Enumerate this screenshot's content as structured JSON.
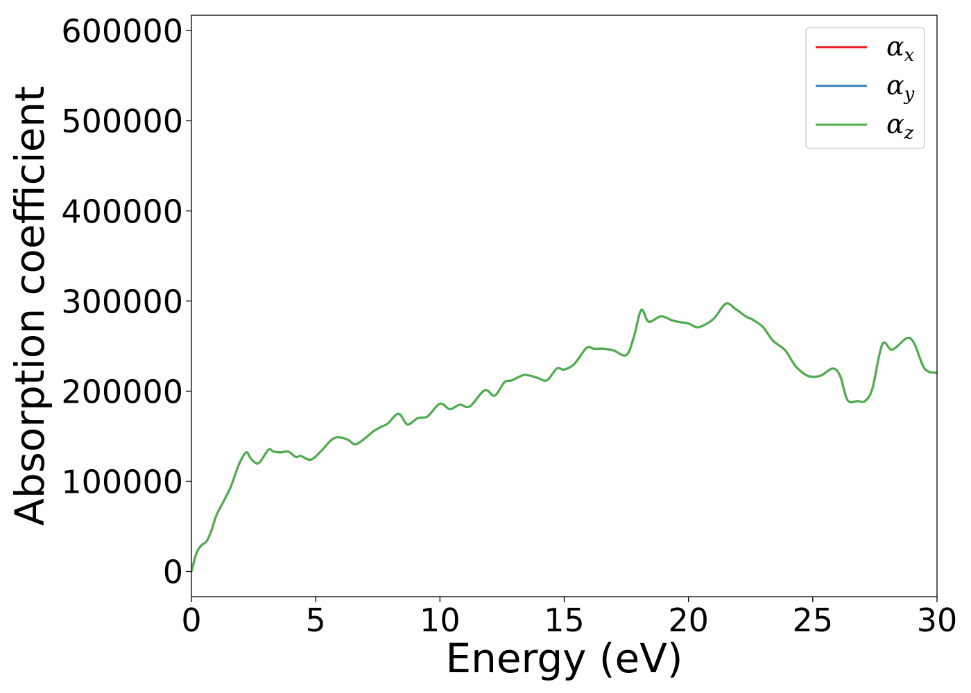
{
  "chart_data": {
    "type": "line",
    "title": "",
    "xlabel": "Energy (eV)",
    "ylabel": "Absorption coefficient",
    "xlim": [
      0,
      30
    ],
    "ylim": [
      -28000,
      617000
    ],
    "x_ticks": [
      0,
      5,
      10,
      15,
      20,
      25,
      30
    ],
    "y_ticks": [
      0,
      100000,
      200000,
      300000,
      400000,
      500000,
      600000
    ],
    "x_tick_labels": [
      "0",
      "5",
      "10",
      "15",
      "20",
      "25",
      "30"
    ],
    "y_tick_labels": [
      "0",
      "100000",
      "200000",
      "300000",
      "400000",
      "500000",
      "600000"
    ],
    "grid": false,
    "legend_position": "top-right",
    "x": [
      0,
      0.2,
      0.4,
      0.6,
      0.8,
      1.0,
      1.3,
      1.6,
      1.9,
      2.2,
      2.4,
      2.7,
      3.1,
      3.3,
      3.6,
      3.9,
      4.2,
      4.4,
      4.8,
      5.2,
      5.6,
      5.9,
      6.3,
      6.6,
      7.0,
      7.3,
      7.6,
      7.9,
      8.2,
      8.4,
      8.7,
      9.1,
      9.5,
      10.0,
      10.4,
      10.8,
      11.2,
      11.8,
      12.2,
      12.6,
      12.9,
      13.4,
      13.9,
      14.3,
      14.7,
      15.0,
      15.4,
      15.9,
      16.2,
      16.6,
      17.0,
      17.5,
      17.8,
      18.1,
      18.4,
      18.9,
      19.4,
      20.0,
      20.4,
      21.0,
      21.5,
      21.9,
      22.3,
      22.6,
      23.0,
      23.4,
      23.9,
      24.3,
      24.8,
      25.3,
      25.8,
      26.1,
      26.4,
      26.8,
      27.1,
      27.4,
      27.8,
      28.2,
      28.8,
      29.1,
      29.5,
      30.0
    ],
    "series": [
      {
        "name": "αx",
        "color": "#e41a1c",
        "y": [
          0,
          20000,
          29000,
          33000,
          45000,
          62000,
          78000,
          95000,
          118000,
          132000,
          125000,
          120000,
          135000,
          133000,
          132000,
          133000,
          127000,
          128000,
          124000,
          133000,
          145000,
          149000,
          146000,
          141000,
          148000,
          155000,
          160000,
          164000,
          173000,
          174000,
          163000,
          170000,
          172000,
          186000,
          180000,
          185000,
          183000,
          201000,
          195000,
          210000,
          212000,
          218000,
          215000,
          212000,
          225000,
          224000,
          230000,
          248000,
          247000,
          247000,
          245000,
          240000,
          260000,
          290000,
          277000,
          283000,
          278000,
          275000,
          271000,
          280000,
          297000,
          291000,
          283000,
          279000,
          271000,
          256000,
          245000,
          228000,
          217000,
          217000,
          225000,
          217000,
          190000,
          189000,
          189000,
          203000,
          252000,
          246000,
          259000,
          252000,
          225000,
          220000
        ]
      },
      {
        "name": "αy",
        "color": "#377eb8",
        "y": [
          0,
          20000,
          29000,
          33000,
          45000,
          62000,
          78000,
          95000,
          118000,
          132000,
          125000,
          120000,
          135000,
          133000,
          132000,
          133000,
          127000,
          128000,
          124000,
          133000,
          145000,
          149000,
          146000,
          141000,
          148000,
          155000,
          160000,
          164000,
          173000,
          174000,
          163000,
          170000,
          172000,
          186000,
          180000,
          185000,
          183000,
          201000,
          195000,
          210000,
          212000,
          218000,
          215000,
          212000,
          225000,
          224000,
          230000,
          248000,
          247000,
          247000,
          245000,
          240000,
          260000,
          290000,
          277000,
          283000,
          278000,
          275000,
          271000,
          280000,
          297000,
          291000,
          283000,
          279000,
          271000,
          256000,
          245000,
          228000,
          217000,
          217000,
          225000,
          217000,
          190000,
          189000,
          189000,
          203000,
          252000,
          246000,
          259000,
          252000,
          225000,
          220000
        ]
      },
      {
        "name": "αz",
        "color": "#4daf4a",
        "y": [
          0,
          20000,
          29000,
          33000,
          45000,
          62000,
          78000,
          95000,
          118000,
          132000,
          125000,
          120000,
          135000,
          133000,
          132000,
          133000,
          127000,
          128000,
          124000,
          133000,
          145000,
          149000,
          146000,
          141000,
          148000,
          155000,
          160000,
          164000,
          173000,
          174000,
          163000,
          170000,
          172000,
          186000,
          180000,
          185000,
          183000,
          201000,
          195000,
          210000,
          212000,
          218000,
          215000,
          212000,
          225000,
          224000,
          230000,
          248000,
          247000,
          247000,
          245000,
          240000,
          260000,
          290000,
          277000,
          283000,
          278000,
          275000,
          271000,
          280000,
          297000,
          291000,
          283000,
          279000,
          271000,
          256000,
          245000,
          228000,
          217000,
          217000,
          225000,
          217000,
          190000,
          189000,
          189000,
          203000,
          252000,
          246000,
          259000,
          252000,
          225000,
          220000
        ]
      }
    ]
  }
}
